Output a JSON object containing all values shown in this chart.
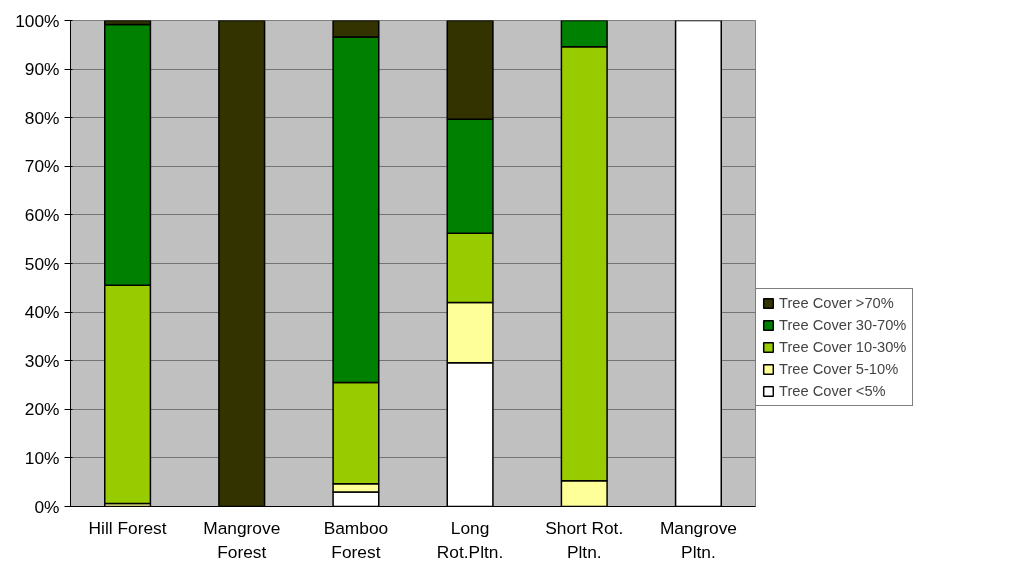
{
  "chart_data": {
    "type": "bar",
    "stacked": true,
    "categories": [
      "Hill Forest",
      "Mangrove Forest",
      "Bamboo Forest",
      "Long Rot.Pltn.",
      "Short Rot. Pltn.",
      "Mangrove Pltn."
    ],
    "series": [
      {
        "name": "Tree Cover <5%",
        "color": "#ffffff",
        "values": [
          0,
          0,
          3.0,
          29.6,
          0,
          100
        ]
      },
      {
        "name": "Tree Cover 5-10%",
        "color": "#ffff99",
        "values": [
          0.6,
          0,
          1.7,
          12.4,
          5.3,
          0
        ]
      },
      {
        "name": "Tree Cover 10-30%",
        "color": "#99cc00",
        "values": [
          44.9,
          0,
          20.8,
          14.2,
          89.3,
          0
        ]
      },
      {
        "name": "Tree Cover 30-70%",
        "color": "#008000",
        "values": [
          53.7,
          0,
          71.1,
          23.5,
          5.4,
          0
        ]
      },
      {
        "name": "Tree Cover >70%",
        "color": "#333300",
        "values": [
          0.8,
          100,
          3.4,
          20.3,
          0,
          0
        ]
      }
    ],
    "ylim": [
      0,
      100
    ],
    "yticks": [
      {
        "value": 0,
        "label": "0%"
      },
      {
        "value": 10,
        "label": "10%"
      },
      {
        "value": 20,
        "label": "20%"
      },
      {
        "value": 30,
        "label": "30%"
      },
      {
        "value": 40,
        "label": "40%"
      },
      {
        "value": 50,
        "label": "50%"
      },
      {
        "value": 60,
        "label": "60%"
      },
      {
        "value": 70,
        "label": "70%"
      },
      {
        "value": 80,
        "label": "80%"
      },
      {
        "value": 90,
        "label": "90%"
      },
      {
        "value": 100,
        "label": "100%"
      }
    ],
    "grid": "y",
    "legend": "right"
  }
}
